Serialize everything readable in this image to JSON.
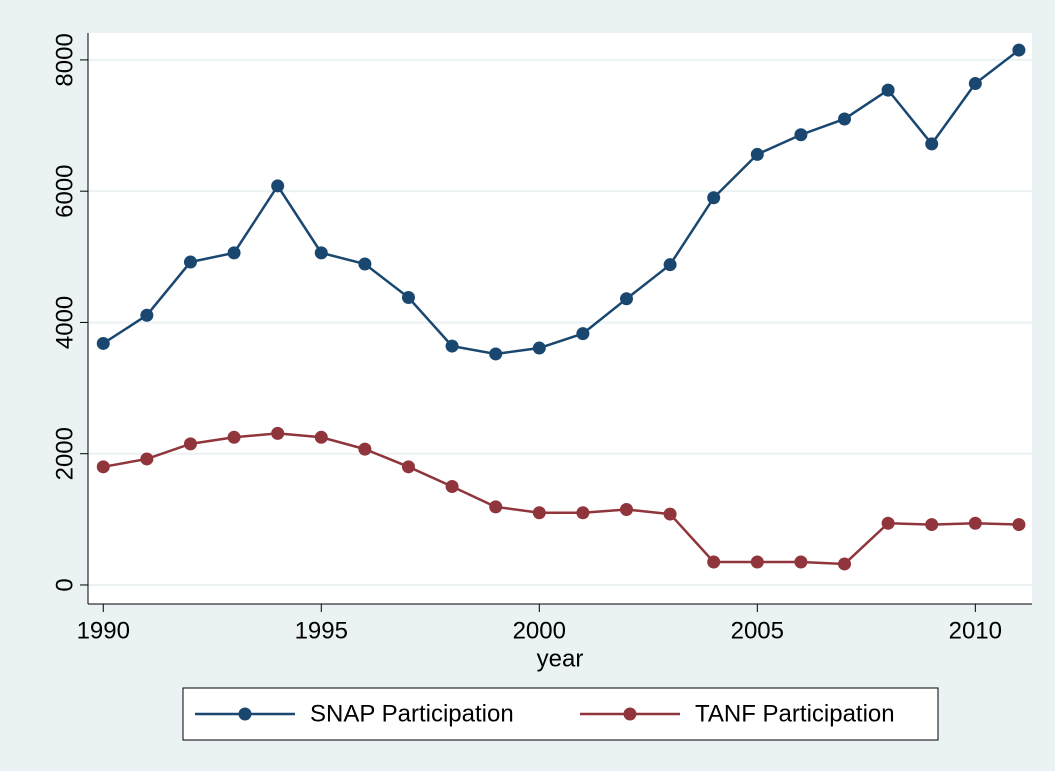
{
  "chart_data": {
    "type": "line",
    "xlabel": "year",
    "x": [
      1990,
      1991,
      1992,
      1993,
      1994,
      1995,
      1996,
      1997,
      1998,
      1999,
      2000,
      2001,
      2002,
      2003,
      2004,
      2005,
      2006,
      2007,
      2008,
      2009,
      2010,
      2011
    ],
    "series": [
      {
        "name": "SNAP Participation",
        "color": "#1a476f",
        "values": [
          3680,
          4110,
          4920,
          5060,
          6080,
          5060,
          4890,
          4380,
          3640,
          3520,
          3610,
          3830,
          4360,
          4880,
          5900,
          6560,
          6860,
          7100,
          7540,
          6720,
          7640,
          8150
        ]
      },
      {
        "name": "TANF Participation",
        "color": "#90353b",
        "values": [
          1800,
          1920,
          2150,
          2250,
          2310,
          2250,
          2070,
          1800,
          1500,
          1190,
          1100,
          1100,
          1150,
          1080,
          350,
          350,
          350,
          320,
          940,
          920,
          940,
          920
        ]
      }
    ],
    "xlim": [
      1989.65,
      2011.3
    ],
    "xticks": [
      1990,
      1995,
      2000,
      2005,
      2010
    ],
    "ylim": [
      -290,
      8410
    ],
    "yticks": [
      0,
      2000,
      4000,
      6000,
      8000
    ],
    "grid": true,
    "legend": "bottom"
  }
}
